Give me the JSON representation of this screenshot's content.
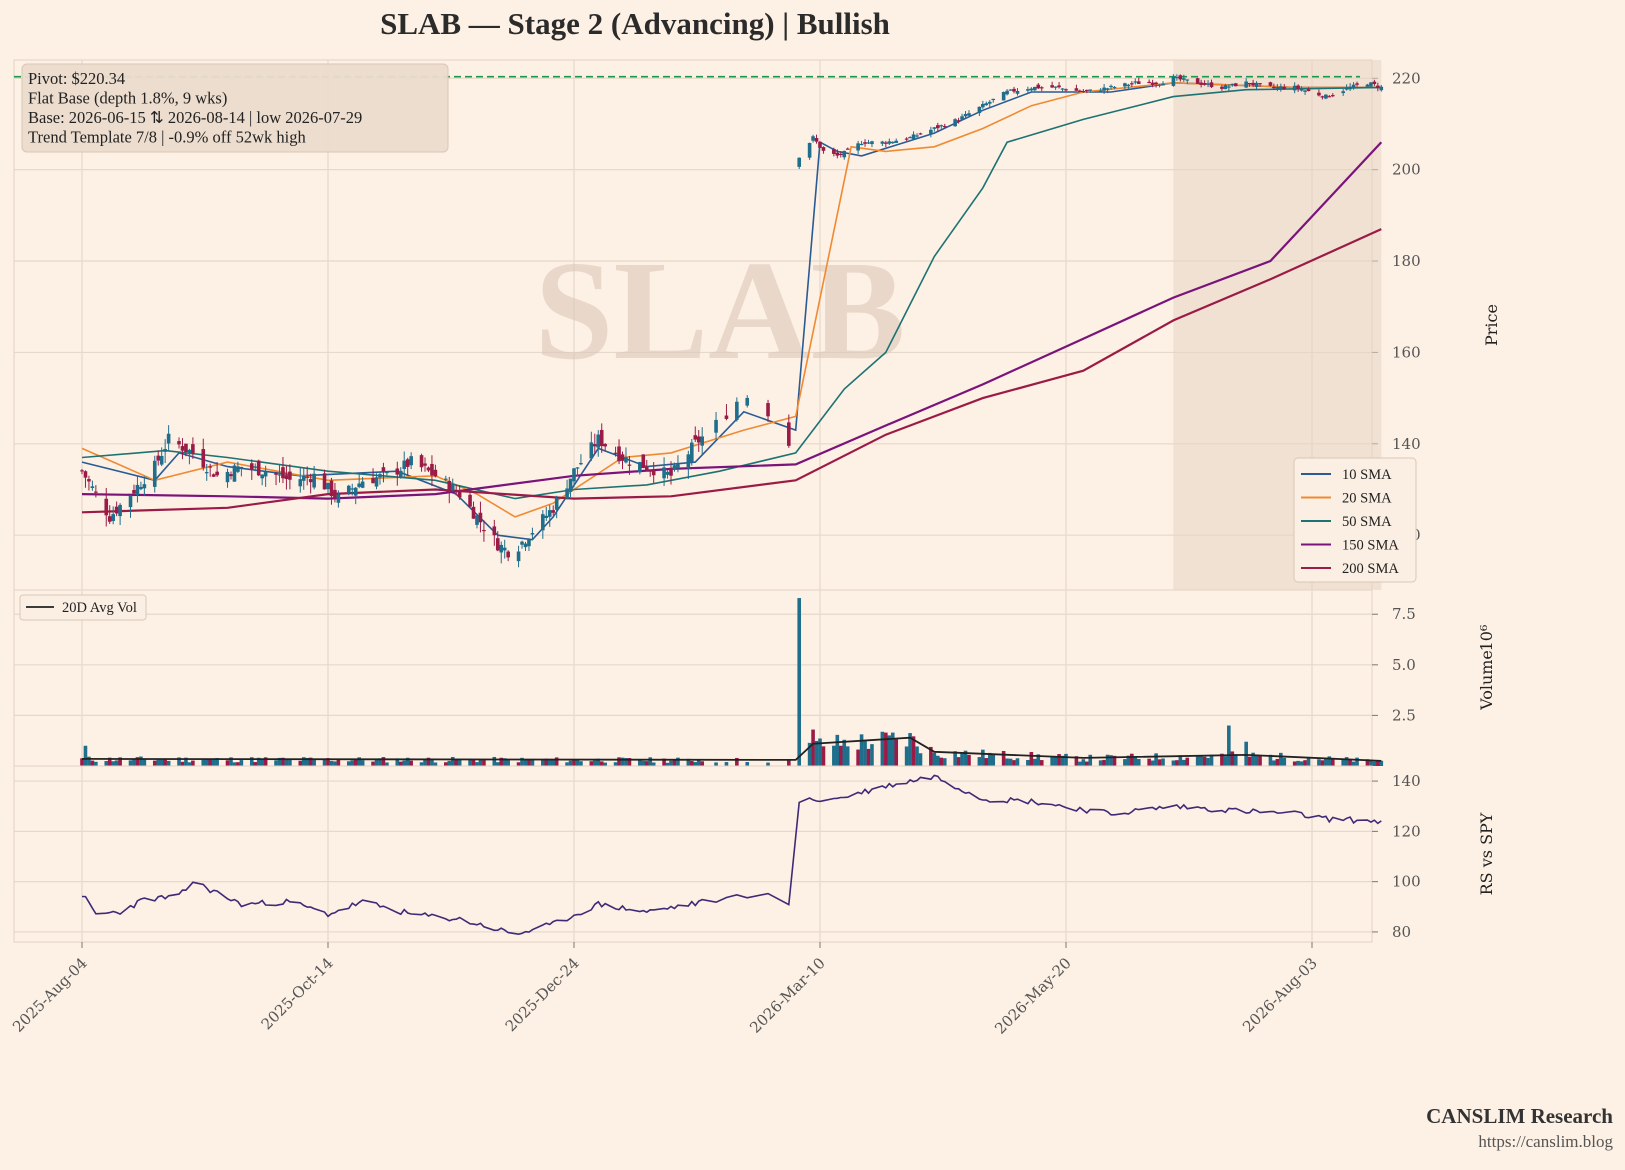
{
  "title": "SLAB  —  Stage 2 (Advancing)  |  Bullish",
  "watermark": "SLAB",
  "annotation": [
    "Pivot: $220.34",
    "Flat Base  (depth 1.8%, 9 wks)",
    "Base: 2026-06-15 ⇅ 2026-08-14  |  low 2026-07-29",
    "Trend Template 7/8  |  -0.9% off 52wk high"
  ],
  "brand": {
    "name": "CANSLIM Research",
    "url": "https://canslim.blog"
  },
  "colors": {
    "background": "#fdf0e4",
    "grid": "#e6d8cb",
    "up": "#1f6e8c",
    "down": "#9b1b47",
    "pivot": "#1a9a4a",
    "sma10": "#2a5b94",
    "sma20": "#f08a32",
    "sma50": "#1d7373",
    "sma150": "#7a137a",
    "sma200": "#9b1b47",
    "avgvol": "#222222",
    "rs": "#3f2a78",
    "base_shade": "#e8d5c4"
  },
  "chart_data": [
    {
      "type": "candlestick",
      "panel": "price",
      "ylabel": "Price",
      "ylim": [
        108,
        224
      ],
      "yticks": [
        120,
        140,
        160,
        180,
        200,
        220
      ],
      "xticks": [
        "2025-Aug-04",
        "2025-Oct-14",
        "2025-Dec-24",
        "2026-Mar-10",
        "2026-May-20",
        "2026-Aug-03"
      ],
      "pivot": 220.34,
      "base_shading": {
        "start": "2026-06-15",
        "end": "2026-08-14"
      },
      "legend": [
        "10 SMA",
        "20 SMA",
        "50 SMA",
        "150 SMA",
        "200 SMA"
      ],
      "legend_position": "lower-right",
      "close_path": [
        [
          "2025-08-04",
          134
        ],
        [
          "2025-08-08",
          129
        ],
        [
          "2025-08-12",
          124
        ],
        [
          "2025-08-18",
          129
        ],
        [
          "2025-08-25",
          135
        ],
        [
          "2025-08-29",
          141
        ],
        [
          "2025-09-05",
          138
        ],
        [
          "2025-09-12",
          133
        ],
        [
          "2025-09-19",
          135
        ],
        [
          "2025-09-26",
          134
        ],
        [
          "2025-10-03",
          132
        ],
        [
          "2025-10-10",
          133
        ],
        [
          "2025-10-17",
          128
        ],
        [
          "2025-10-24",
          132
        ],
        [
          "2025-10-31",
          133
        ],
        [
          "2025-11-07",
          136
        ],
        [
          "2025-11-14",
          133
        ],
        [
          "2025-11-21",
          129
        ],
        [
          "2025-11-26",
          124
        ],
        [
          "2025-12-02",
          118
        ],
        [
          "2025-12-06",
          116
        ],
        [
          "2025-12-12",
          121
        ],
        [
          "2025-12-18",
          126
        ],
        [
          "2025-12-24",
          134
        ],
        [
          "2025-12-31",
          141
        ],
        [
          "2026-01-07",
          137
        ],
        [
          "2026-01-14",
          135
        ],
        [
          "2026-01-21",
          133
        ],
        [
          "2026-01-28",
          140
        ],
        [
          "2026-02-04",
          145
        ],
        [
          "2026-02-11",
          151
        ],
        [
          "2026-02-18",
          147
        ],
        [
          "2026-02-24",
          140
        ],
        [
          "2026-02-26",
          137
        ],
        [
          "2026-02-27",
          203
        ],
        [
          "2026-03-03",
          207
        ],
        [
          "2026-03-06",
          204
        ],
        [
          "2026-03-10",
          203
        ],
        [
          "2026-03-13",
          204
        ],
        [
          "2026-03-17",
          206
        ],
        [
          "2026-03-24",
          206
        ],
        [
          "2026-03-31",
          207
        ],
        [
          "2026-04-07",
          209
        ],
        [
          "2026-04-14",
          211
        ],
        [
          "2026-04-21",
          214
        ],
        [
          "2026-04-28",
          217
        ],
        [
          "2026-05-05",
          218
        ],
        [
          "2026-05-12",
          218
        ],
        [
          "2026-05-20",
          217
        ],
        [
          "2026-05-28",
          218
        ],
        [
          "2026-06-04",
          219
        ],
        [
          "2026-06-11",
          219
        ],
        [
          "2026-06-15",
          220
        ],
        [
          "2026-06-22",
          219
        ],
        [
          "2026-06-29",
          218
        ],
        [
          "2026-07-06",
          219
        ],
        [
          "2026-07-13",
          218
        ],
        [
          "2026-07-20",
          218
        ],
        [
          "2026-07-29",
          216
        ],
        [
          "2026-08-05",
          218
        ],
        [
          "2026-08-10",
          219
        ],
        [
          "2026-08-14",
          218
        ]
      ],
      "sma_series": [
        {
          "name": "10 SMA",
          "points": [
            [
              "2025-08-04",
              136
            ],
            [
              "2025-08-25",
              132
            ],
            [
              "2025-09-01",
              138
            ],
            [
              "2025-09-15",
              135
            ],
            [
              "2025-10-06",
              133
            ],
            [
              "2025-11-03",
              134
            ],
            [
              "2025-11-20",
              129
            ],
            [
              "2025-12-02",
              120
            ],
            [
              "2025-12-12",
              119
            ],
            [
              "2025-12-18",
              124
            ],
            [
              "2025-12-31",
              139
            ],
            [
              "2026-01-14",
              135
            ],
            [
              "2026-01-28",
              136
            ],
            [
              "2026-02-11",
              147
            ],
            [
              "2026-02-26",
              143
            ],
            [
              "2026-03-05",
              206
            ],
            [
              "2026-03-10",
              204
            ],
            [
              "2026-03-17",
              203
            ],
            [
              "2026-04-07",
              208
            ],
            [
              "2026-04-21",
              213
            ],
            [
              "2026-05-05",
              217
            ],
            [
              "2026-05-28",
              217
            ],
            [
              "2026-06-15",
              219
            ],
            [
              "2026-07-20",
              218
            ],
            [
              "2026-08-14",
              218
            ]
          ]
        },
        {
          "name": "20 SMA",
          "points": [
            [
              "2025-08-04",
              139
            ],
            [
              "2025-08-25",
              132
            ],
            [
              "2025-09-15",
              136
            ],
            [
              "2025-10-14",
              132
            ],
            [
              "2025-11-14",
              133
            ],
            [
              "2025-11-26",
              129
            ],
            [
              "2025-12-07",
              124
            ],
            [
              "2025-12-18",
              127
            ],
            [
              "2026-01-07",
              137
            ],
            [
              "2026-01-21",
              138
            ],
            [
              "2026-02-11",
              143
            ],
            [
              "2026-02-26",
              146
            ],
            [
              "2026-03-14",
              205
            ],
            [
              "2026-03-24",
              204
            ],
            [
              "2026-04-07",
              205
            ],
            [
              "2026-04-21",
              209
            ],
            [
              "2026-05-05",
              214
            ],
            [
              "2026-05-20",
              217
            ],
            [
              "2026-06-15",
              219
            ],
            [
              "2026-07-20",
              218
            ],
            [
              "2026-08-14",
              218
            ]
          ]
        },
        {
          "name": "50 SMA",
          "points": [
            [
              "2025-08-04",
              137
            ],
            [
              "2025-08-28",
              138.5
            ],
            [
              "2025-09-15",
              137
            ],
            [
              "2025-10-14",
              134
            ],
            [
              "2025-11-14",
              132
            ],
            [
              "2025-12-07",
              128
            ],
            [
              "2025-12-24",
              130
            ],
            [
              "2026-01-14",
              131
            ],
            [
              "2026-02-04",
              134
            ],
            [
              "2026-02-26",
              138
            ],
            [
              "2026-03-12",
              152
            ],
            [
              "2026-03-24",
              160
            ],
            [
              "2026-04-07",
              181
            ],
            [
              "2026-04-21",
              196
            ],
            [
              "2026-04-28",
              206
            ],
            [
              "2026-05-20",
              211
            ],
            [
              "2026-06-15",
              216
            ],
            [
              "2026-07-06",
              217.5
            ],
            [
              "2026-08-14",
              218
            ]
          ]
        },
        {
          "name": "150 SMA",
          "points": [
            [
              "2025-08-04",
              129
            ],
            [
              "2025-09-15",
              128.5
            ],
            [
              "2025-10-14",
              128
            ],
            [
              "2025-11-14",
              129
            ],
            [
              "2025-12-24",
              133
            ],
            [
              "2026-01-21",
              134.5
            ],
            [
              "2026-02-26",
              135.5
            ],
            [
              "2026-03-24",
              144
            ],
            [
              "2026-04-21",
              153
            ],
            [
              "2026-05-20",
              163
            ],
            [
              "2026-06-15",
              172
            ],
            [
              "2026-07-13",
              180
            ],
            [
              "2026-08-14",
              206
            ]
          ]
        },
        {
          "name": "200 SMA",
          "points": [
            [
              "2025-08-04",
              125
            ],
            [
              "2025-09-15",
              126
            ],
            [
              "2025-10-14",
              129
            ],
            [
              "2025-11-14",
              130
            ],
            [
              "2025-12-24",
              128
            ],
            [
              "2026-01-21",
              128.5
            ],
            [
              "2026-02-26",
              132
            ],
            [
              "2026-03-24",
              142
            ],
            [
              "2026-04-21",
              150
            ],
            [
              "2026-05-20",
              156
            ],
            [
              "2026-06-15",
              167
            ],
            [
              "2026-07-13",
              176
            ],
            [
              "2026-08-14",
              187
            ]
          ]
        }
      ]
    },
    {
      "type": "bar",
      "panel": "volume",
      "ylabel": "Volume",
      "unit_exponent": "10⁶",
      "ylim": [
        0,
        8.5
      ],
      "yticks": [
        "2.5",
        "5.0",
        "7.5"
      ],
      "legend": [
        "20D Avg Vol"
      ],
      "legend_position": "upper-left",
      "spikes": [
        [
          "2025-08-05",
          1.0
        ],
        [
          "2026-02-27",
          8.3
        ],
        [
          "2026-03-01",
          2.6
        ],
        [
          "2026-03-03",
          1.8
        ],
        [
          "2026-07-01",
          2.0
        ],
        [
          "2026-07-06",
          1.2
        ]
      ],
      "avg_vol_path": [
        [
          "2025-08-04",
          0.35
        ],
        [
          "2026-02-26",
          0.3
        ],
        [
          "2026-03-03",
          1.1
        ],
        [
          "2026-03-31",
          1.4
        ],
        [
          "2026-04-07",
          0.7
        ],
        [
          "2026-05-20",
          0.4
        ],
        [
          "2026-07-06",
          0.55
        ],
        [
          "2026-08-14",
          0.25
        ]
      ]
    },
    {
      "type": "line",
      "panel": "rs",
      "ylabel": "RS vs SPY",
      "ylim": [
        76,
        146
      ],
      "yticks": [
        80,
        100,
        120,
        140
      ],
      "series": [
        {
          "name": "",
          "points": [
            [
              "2025-08-04",
              95
            ],
            [
              "2025-08-08",
              87
            ],
            [
              "2025-08-15",
              88
            ],
            [
              "2025-08-22",
              93
            ],
            [
              "2025-09-01",
              94
            ],
            [
              "2025-09-05",
              100
            ],
            [
              "2025-09-19",
              91
            ],
            [
              "2025-10-03",
              92
            ],
            [
              "2025-10-14",
              87
            ],
            [
              "2025-10-24",
              92
            ],
            [
              "2025-11-07",
              87
            ],
            [
              "2025-11-21",
              85
            ],
            [
              "2025-12-02",
              81
            ],
            [
              "2025-12-07",
              79
            ],
            [
              "2025-12-18",
              83
            ],
            [
              "2025-12-31",
              91
            ],
            [
              "2026-01-14",
              88
            ],
            [
              "2026-02-04",
              93
            ],
            [
              "2026-02-18",
              96
            ],
            [
              "2026-02-26",
              88
            ],
            [
              "2026-02-27",
              132
            ],
            [
              "2026-03-10",
              133
            ],
            [
              "2026-03-24",
              138
            ],
            [
              "2026-04-07",
              142
            ],
            [
              "2026-04-21",
              133
            ],
            [
              "2026-05-05",
              132
            ],
            [
              "2026-05-28",
              127
            ],
            [
              "2026-06-15",
              130
            ],
            [
              "2026-07-06",
              128
            ],
            [
              "2026-07-20",
              127
            ],
            [
              "2026-07-29",
              125
            ],
            [
              "2026-08-14",
              124
            ]
          ]
        }
      ]
    }
  ]
}
